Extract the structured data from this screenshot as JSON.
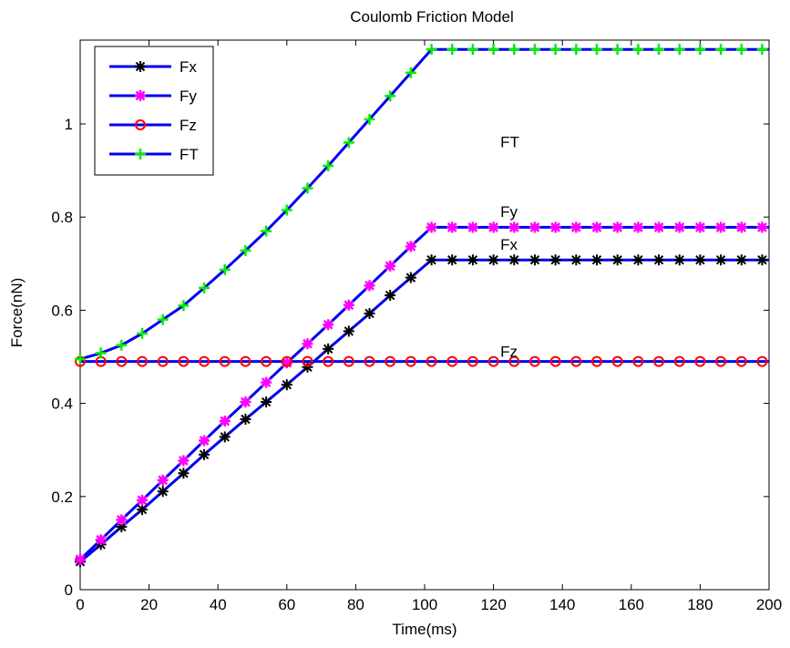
{
  "chart_data": {
    "type": "line",
    "title": "Coulomb Friction Model",
    "xlabel": "Time(ms)",
    "ylabel": "Force(nN)",
    "xlim": [
      0,
      200
    ],
    "ylim": [
      0,
      1.18
    ],
    "xticks": [
      "0",
      "20",
      "40",
      "60",
      "80",
      "100",
      "120",
      "140",
      "160",
      "180",
      "200"
    ],
    "yticks": [
      "0",
      "0.2",
      "0.4",
      "0.6",
      "0.8",
      "1"
    ],
    "grid": false,
    "legend_position": "top-left",
    "line_color": "#0000ee",
    "series": [
      {
        "name": "Fx",
        "marker": "asterisk",
        "marker_color": "#000000",
        "x": [
          0,
          6,
          12,
          18,
          24,
          30,
          36,
          42,
          48,
          54,
          60,
          66,
          72,
          78,
          84,
          90,
          96,
          102,
          108,
          114,
          120,
          126,
          132,
          138,
          144,
          150,
          156,
          162,
          168,
          174,
          180,
          186,
          192,
          198
        ],
        "y": [
          0.06,
          0.097,
          0.135,
          0.172,
          0.211,
          0.25,
          0.29,
          0.328,
          0.366,
          0.403,
          0.44,
          0.478,
          0.517,
          0.555,
          0.593,
          0.632,
          0.67,
          0.708,
          0.708,
          0.708,
          0.708,
          0.708,
          0.708,
          0.708,
          0.708,
          0.708,
          0.708,
          0.708,
          0.708,
          0.708,
          0.708,
          0.708,
          0.708,
          0.708
        ]
      },
      {
        "name": "Fy",
        "marker": "star",
        "marker_color": "#ff00ff",
        "x": [
          0,
          6,
          12,
          18,
          24,
          30,
          36,
          42,
          48,
          54,
          60,
          66,
          72,
          78,
          84,
          90,
          96,
          102,
          108,
          114,
          120,
          126,
          132,
          138,
          144,
          150,
          156,
          162,
          168,
          174,
          180,
          186,
          192,
          198
        ],
        "y": [
          0.065,
          0.107,
          0.15,
          0.192,
          0.235,
          0.277,
          0.32,
          0.362,
          0.403,
          0.445,
          0.487,
          0.528,
          0.569,
          0.611,
          0.653,
          0.695,
          0.737,
          0.778,
          0.778,
          0.778,
          0.778,
          0.778,
          0.778,
          0.778,
          0.778,
          0.778,
          0.778,
          0.778,
          0.778,
          0.778,
          0.778,
          0.778,
          0.778,
          0.778
        ]
      },
      {
        "name": "Fz",
        "marker": "circle",
        "marker_color": "#ff0000",
        "x": [
          0,
          6,
          12,
          18,
          24,
          30,
          36,
          42,
          48,
          54,
          60,
          66,
          72,
          78,
          84,
          90,
          96,
          102,
          108,
          114,
          120,
          126,
          132,
          138,
          144,
          150,
          156,
          162,
          168,
          174,
          180,
          186,
          192,
          198
        ],
        "y": [
          0.49,
          0.49,
          0.49,
          0.49,
          0.49,
          0.49,
          0.49,
          0.49,
          0.49,
          0.49,
          0.49,
          0.49,
          0.49,
          0.49,
          0.49,
          0.49,
          0.49,
          0.49,
          0.49,
          0.49,
          0.49,
          0.49,
          0.49,
          0.49,
          0.49,
          0.49,
          0.49,
          0.49,
          0.49,
          0.49,
          0.49,
          0.49,
          0.49,
          0.49
        ]
      },
      {
        "name": "FT",
        "marker": "plus",
        "marker_color": "#00ee00",
        "x": [
          0,
          6,
          12,
          18,
          24,
          30,
          36,
          42,
          48,
          54,
          60,
          66,
          72,
          78,
          84,
          90,
          96,
          102,
          108,
          114,
          120,
          126,
          132,
          138,
          144,
          150,
          156,
          162,
          168,
          174,
          180,
          186,
          192,
          198
        ],
        "y": [
          0.495,
          0.508,
          0.525,
          0.55,
          0.58,
          0.61,
          0.648,
          0.687,
          0.728,
          0.77,
          0.815,
          0.862,
          0.91,
          0.96,
          1.01,
          1.06,
          1.11,
          1.16,
          1.16,
          1.16,
          1.16,
          1.16,
          1.16,
          1.16,
          1.16,
          1.16,
          1.16,
          1.16,
          1.16,
          1.16,
          1.16,
          1.16,
          1.16,
          1.16
        ]
      }
    ],
    "annotations": [
      {
        "text": "FT",
        "x": 122,
        "y": 0.95
      },
      {
        "text": "Fy",
        "x": 122,
        "y": 0.8
      },
      {
        "text": "Fx",
        "x": 122,
        "y": 0.73
      },
      {
        "text": "Fz",
        "x": 122,
        "y": 0.5
      }
    ]
  }
}
